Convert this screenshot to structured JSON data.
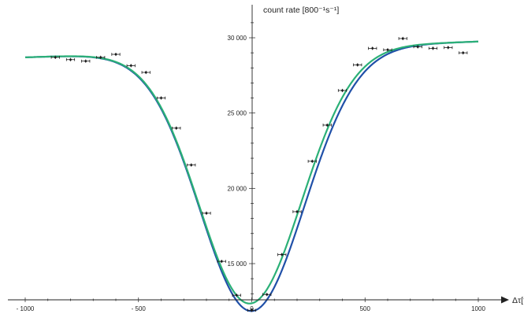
{
  "chart_data": {
    "type": "scatter",
    "title": "",
    "xlabel": "Δτ[fs]",
    "ylabel": "count rate [800⁻¹s⁻¹]",
    "xlim": [
      -1000,
      1000
    ],
    "ylim": [
      10800,
      31800
    ],
    "x_ticks": [
      -1000,
      -500,
      0,
      500,
      1000
    ],
    "x_tick_labels": [
      "- 1000",
      "- 500",
      "0",
      "500",
      "1000"
    ],
    "y_ticks": [
      15000,
      20000,
      25000,
      30000
    ],
    "y_tick_labels": [
      "15 000",
      "20 000",
      "25 000",
      "30 000"
    ],
    "grid": false,
    "series": [
      {
        "kind": "points",
        "color": "#1a1a1a",
        "x_error": 18,
        "y_error": 110,
        "x": [
          -867,
          -800,
          -733,
          -667,
          -600,
          -533,
          -467,
          -400,
          -333,
          -267,
          -200,
          -133,
          -67,
          0,
          67,
          133,
          200,
          267,
          333,
          400,
          467,
          533,
          600,
          667,
          733,
          800,
          867,
          933
        ],
        "y": [
          28700,
          28550,
          28450,
          28700,
          28900,
          28150,
          27700,
          26000,
          24000,
          21550,
          18350,
          15150,
          12900,
          11900,
          12950,
          15600,
          18450,
          21800,
          24200,
          26500,
          28200,
          29300,
          29200,
          29950,
          29400,
          29300,
          29350,
          29000
        ]
      },
      {
        "kind": "curve",
        "color": "#2050a8",
        "baseline": 28700,
        "baseline_right": 29750,
        "minimum": 11850,
        "center": -2,
        "width_left": 338,
        "width_right": 345
      },
      {
        "kind": "curve",
        "color": "#2bb077",
        "baseline": 28700,
        "baseline_right": 29750,
        "minimum": 12350,
        "center": -10,
        "width_left": 332,
        "width_right": 338
      }
    ]
  }
}
